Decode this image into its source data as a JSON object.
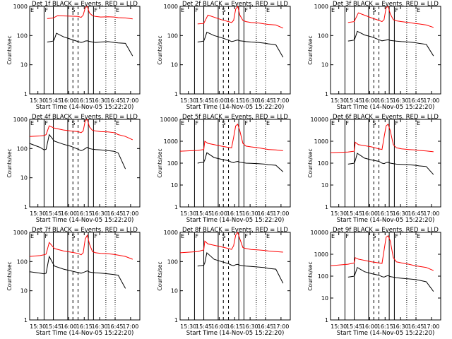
{
  "figure": {
    "xaxis_ticks": [
      "15:30",
      "15:45",
      "16:00",
      "16:15",
      "16:30",
      "16:45",
      "17:00"
    ],
    "xlabel": "Start Time (14-Nov-05 15:22:20)",
    "ylabel": "Counts/sec"
  },
  "chart_data": [
    {
      "type": "line",
      "title": "Det 1f BLACK = Events, RED = LLD",
      "ylim": [
        1,
        1000
      ],
      "yticks": [
        "1",
        "10",
        "100",
        "1000"
      ],
      "yscale": "log",
      "xlim_minutes": [
        0,
        107
      ],
      "markers": [
        "E",
        "F",
        "S",
        "F",
        "E"
      ],
      "series": [
        {
          "color": "#ff0000",
          "x": [
            17,
            23,
            27,
            40,
            47,
            50,
            52,
            54,
            56,
            58,
            61,
            64,
            69,
            76,
            82,
            86,
            93,
            100
          ],
          "y": [
            380,
            400,
            480,
            460,
            450,
            420,
            500,
            900,
            1000,
            600,
            480,
            450,
            430,
            440,
            430,
            410,
            400,
            370
          ]
        },
        {
          "color": "#000000",
          "x": [
            17,
            20,
            23,
            24,
            26,
            33,
            40,
            47,
            50,
            52,
            54,
            56,
            58,
            61,
            64,
            69,
            76,
            82,
            86,
            93,
            100
          ],
          "y": [
            60,
            62,
            65,
            75,
            120,
            90,
            75,
            62,
            58,
            60,
            65,
            66,
            63,
            60,
            58,
            60,
            62,
            58,
            56,
            54,
            20
          ]
        }
      ]
    },
    {
      "type": "line",
      "title": "Det 2f BLACK = Events, RED = LLD",
      "ylim": [
        1,
        1000
      ],
      "yticks": [
        "1",
        "10",
        "100",
        "1000"
      ],
      "yscale": "log",
      "xlim_minutes": [
        0,
        107
      ],
      "markers": [
        "E",
        "F",
        "S",
        "F",
        "E"
      ],
      "series": [
        {
          "color": "#ff0000",
          "x": [
            17,
            23,
            27,
            40,
            47,
            50,
            52,
            54,
            56,
            58,
            61,
            64,
            69,
            76,
            82,
            86,
            93,
            100
          ],
          "y": [
            250,
            260,
            500,
            350,
            300,
            280,
            330,
            800,
            1000,
            500,
            330,
            300,
            280,
            270,
            250,
            240,
            230,
            180
          ]
        },
        {
          "color": "#000000",
          "x": [
            17,
            20,
            23,
            24,
            26,
            33,
            40,
            47,
            50,
            52,
            54,
            56,
            58,
            61,
            64,
            69,
            76,
            82,
            86,
            93,
            100
          ],
          "y": [
            60,
            62,
            65,
            80,
            130,
            100,
            85,
            70,
            62,
            64,
            68,
            70,
            66,
            64,
            62,
            60,
            58,
            55,
            52,
            48,
            18
          ]
        }
      ]
    },
    {
      "type": "line",
      "title": "Det 3f BLACK = Events, RED = LLD",
      "ylim": [
        1,
        1000
      ],
      "yticks": [
        "1",
        "10",
        "100",
        "1000"
      ],
      "yscale": "log",
      "xlim_minutes": [
        0,
        107
      ],
      "markers": [
        "E",
        "F",
        "S",
        "F",
        "E"
      ],
      "series": [
        {
          "color": "#ff0000",
          "x": [
            17,
            23,
            27,
            40,
            47,
            50,
            52,
            54,
            56,
            58,
            61,
            64,
            69,
            76,
            82,
            86,
            93,
            100
          ],
          "y": [
            280,
            300,
            600,
            400,
            330,
            300,
            350,
            900,
            1000,
            550,
            350,
            320,
            300,
            280,
            260,
            250,
            230,
            190
          ]
        },
        {
          "color": "#000000",
          "x": [
            17,
            20,
            23,
            24,
            26,
            33,
            40,
            47,
            50,
            52,
            54,
            56,
            58,
            61,
            64,
            69,
            76,
            82,
            86,
            93,
            100
          ],
          "y": [
            65,
            67,
            70,
            85,
            140,
            105,
            90,
            72,
            66,
            68,
            70,
            72,
            68,
            66,
            64,
            62,
            60,
            57,
            54,
            50,
            20
          ]
        }
      ]
    },
    {
      "type": "line",
      "title": "Det 4f BLACK = Events, RED = LLD",
      "ylim": [
        1,
        1000
      ],
      "yticks": [
        "1",
        "10",
        "100",
        "1000"
      ],
      "yscale": "log",
      "xlim_minutes": [
        0,
        107
      ],
      "markers": [
        "E",
        "F",
        "S",
        "F",
        "E"
      ],
      "series": [
        {
          "color": "#ff0000",
          "x": [
            0,
            10,
            14,
            16,
            19,
            24,
            33,
            40,
            47,
            50,
            52,
            54,
            56,
            58,
            61,
            64,
            69,
            76,
            82,
            86,
            93,
            100
          ],
          "y": [
            260,
            270,
            280,
            300,
            600,
            500,
            430,
            400,
            380,
            350,
            400,
            900,
            1000,
            550,
            420,
            400,
            380,
            370,
            350,
            300,
            260,
            200
          ]
        },
        {
          "color": "#000000",
          "x": [
            0,
            10,
            14,
            16,
            19,
            24,
            33,
            40,
            47,
            50,
            52,
            54,
            56,
            58,
            61,
            64,
            69,
            76,
            82,
            86,
            93
          ],
          "y": [
            150,
            110,
            90,
            95,
            300,
            180,
            140,
            120,
            95,
            85,
            90,
            100,
            110,
            100,
            95,
            92,
            90,
            85,
            80,
            70,
            20
          ]
        }
      ]
    },
    {
      "type": "line",
      "title": "Det 5f BLACK = Events, RED = LLD",
      "ylim": [
        1,
        10000
      ],
      "yticks": [
        "1",
        "10",
        "100",
        "1000",
        "10000"
      ],
      "yscale": "log",
      "xlim_minutes": [
        0,
        107
      ],
      "markers": [
        "E",
        "F",
        "S",
        "F",
        "E"
      ],
      "series": [
        {
          "color": "#ff0000",
          "x": [
            0,
            17,
            23,
            24,
            27,
            40,
            47,
            50,
            52,
            54,
            56,
            58,
            61,
            64,
            69,
            76,
            82,
            86,
            93,
            100
          ],
          "y": [
            350,
            380,
            420,
            1000,
            800,
            600,
            520,
            500,
            1500,
            5000,
            6000,
            3000,
            800,
            600,
            550,
            500,
            450,
            420,
            400,
            370
          ]
        },
        {
          "color": "#000000",
          "x": [
            17,
            20,
            23,
            24,
            26,
            33,
            40,
            47,
            50,
            52,
            54,
            56,
            58,
            61,
            64,
            69,
            76,
            82,
            86,
            93,
            100
          ],
          "y": [
            100,
            105,
            110,
            140,
            300,
            180,
            150,
            130,
            110,
            105,
            115,
            120,
            110,
            105,
            100,
            98,
            95,
            90,
            85,
            80,
            40
          ]
        }
      ]
    },
    {
      "type": "line",
      "title": "Det 6f BLACK = Events, RED = LLD",
      "ylim": [
        1,
        10000
      ],
      "yticks": [
        "1",
        "10",
        "100",
        "1000",
        "10000"
      ],
      "yscale": "log",
      "xlim_minutes": [
        0,
        107
      ],
      "markers": [
        "E",
        "F",
        "S",
        "F",
        "E"
      ],
      "series": [
        {
          "color": "#ff0000",
          "x": [
            0,
            17,
            23,
            24,
            27,
            40,
            47,
            50,
            52,
            54,
            56,
            58,
            61,
            64,
            69,
            76,
            82,
            86,
            93,
            100
          ],
          "y": [
            300,
            320,
            350,
            900,
            700,
            550,
            450,
            420,
            1500,
            5000,
            6000,
            3000,
            700,
            500,
            450,
            420,
            400,
            380,
            360,
            330
          ]
        },
        {
          "color": "#000000",
          "x": [
            17,
            20,
            23,
            24,
            26,
            33,
            40,
            47,
            50,
            52,
            54,
            56,
            58,
            61,
            64,
            69,
            76,
            82,
            86,
            93,
            100
          ],
          "y": [
            90,
            95,
            100,
            130,
            280,
            170,
            140,
            120,
            100,
            95,
            105,
            110,
            100,
            95,
            90,
            88,
            85,
            80,
            75,
            70,
            30
          ]
        }
      ]
    },
    {
      "type": "line",
      "title": "Det 7f BLACK = Events, RED = LLD",
      "ylim": [
        1,
        1000
      ],
      "yticks": [
        "1",
        "10",
        "100",
        "1000"
      ],
      "yscale": "log",
      "xlim_minutes": [
        0,
        107
      ],
      "markers": [
        "E",
        "F",
        "S",
        "F",
        "E"
      ],
      "series": [
        {
          "color": "#ff0000",
          "x": [
            0,
            10,
            14,
            16,
            19,
            24,
            33,
            40,
            47,
            50,
            52,
            54,
            56,
            58,
            61,
            64,
            69,
            76,
            82,
            86,
            93,
            100
          ],
          "y": [
            150,
            160,
            170,
            180,
            450,
            280,
            230,
            210,
            190,
            170,
            200,
            600,
            800,
            400,
            220,
            200,
            190,
            185,
            175,
            165,
            150,
            120
          ]
        },
        {
          "color": "#000000",
          "x": [
            0,
            10,
            14,
            16,
            19,
            24,
            33,
            40,
            47,
            50,
            52,
            54,
            56,
            58,
            61,
            64,
            69,
            76,
            82,
            86,
            93
          ],
          "y": [
            45,
            40,
            38,
            40,
            150,
            70,
            55,
            48,
            42,
            40,
            42,
            45,
            48,
            44,
            42,
            41,
            40,
            38,
            36,
            34,
            12
          ]
        }
      ]
    },
    {
      "type": "line",
      "title": "Det 8f BLACK = Events, RED = LLD",
      "ylim": [
        1,
        1000
      ],
      "yticks": [
        "1",
        "10",
        "100",
        "1000"
      ],
      "yscale": "log",
      "xlim_minutes": [
        0,
        107
      ],
      "markers": [
        "E",
        "F",
        "S",
        "F",
        "E"
      ],
      "series": [
        {
          "color": "#ff0000",
          "x": [
            0,
            17,
            23,
            24,
            27,
            40,
            47,
            50,
            52,
            54,
            56,
            58,
            61,
            64,
            69,
            76,
            82,
            86,
            93,
            100
          ],
          "y": [
            200,
            220,
            250,
            500,
            400,
            320,
            280,
            260,
            350,
            800,
            1000,
            600,
            300,
            280,
            260,
            250,
            240,
            230,
            220,
            210
          ]
        },
        {
          "color": "#000000",
          "x": [
            17,
            20,
            23,
            24,
            26,
            33,
            40,
            47,
            50,
            52,
            54,
            56,
            58,
            61,
            64,
            69,
            76,
            82,
            86,
            93,
            100
          ],
          "y": [
            70,
            72,
            75,
            90,
            200,
            120,
            100,
            85,
            75,
            72,
            78,
            80,
            75,
            72,
            70,
            68,
            65,
            62,
            58,
            55,
            18
          ]
        }
      ]
    },
    {
      "type": "line",
      "title": "Det 9f BLACK = Events, RED = LLD",
      "ylim": [
        1,
        10000
      ],
      "yticks": [
        "1",
        "10",
        "100",
        "1000",
        "10000"
      ],
      "yscale": "log",
      "xlim_minutes": [
        0,
        107
      ],
      "markers": [
        "E",
        "F",
        "S",
        "F",
        "E"
      ],
      "series": [
        {
          "color": "#ff0000",
          "x": [
            0,
            17,
            23,
            24,
            27,
            40,
            47,
            50,
            52,
            54,
            56,
            58,
            61,
            64,
            69,
            76,
            82,
            86,
            93,
            100
          ],
          "y": [
            300,
            350,
            400,
            700,
            600,
            450,
            400,
            380,
            1500,
            6000,
            7000,
            4000,
            700,
            450,
            400,
            350,
            300,
            280,
            250,
            180
          ]
        },
        {
          "color": "#000000",
          "x": [
            17,
            20,
            23,
            24,
            26,
            33,
            40,
            47,
            50,
            52,
            54,
            56,
            58,
            61,
            64,
            69,
            76,
            82,
            86,
            93,
            100
          ],
          "y": [
            90,
            95,
            100,
            130,
            250,
            160,
            130,
            110,
            95,
            90,
            100,
            105,
            95,
            90,
            85,
            80,
            75,
            70,
            65,
            55,
            20
          ]
        }
      ]
    }
  ]
}
